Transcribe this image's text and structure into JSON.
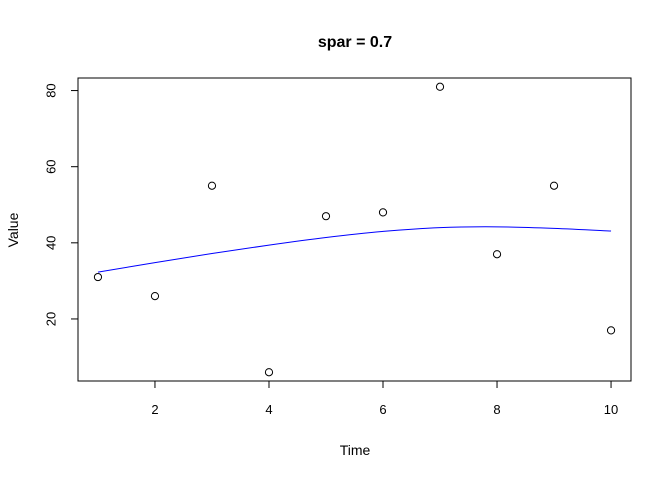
{
  "chart_data": {
    "type": "scatter",
    "title": "spar = 0.7",
    "xlabel": "Time",
    "ylabel": "Value",
    "xlim": [
      0.65,
      10.35
    ],
    "ylim": [
      3.7,
      83.3
    ],
    "x_ticks": [
      2,
      4,
      6,
      8,
      10
    ],
    "y_ticks": [
      20,
      40,
      60,
      80
    ],
    "grid": false,
    "colors": {
      "points": "#000000",
      "smooth_line": "#0000ff",
      "axes": "#000000"
    },
    "series": [
      {
        "type": "scatter",
        "x": [
          1,
          2,
          3,
          4,
          5,
          6,
          7,
          8,
          9,
          10
        ],
        "y": [
          31,
          26,
          55,
          6,
          47,
          48,
          81,
          37,
          55,
          17
        ]
      },
      {
        "type": "line",
        "x": [
          1,
          2,
          3,
          4,
          5,
          6,
          7,
          8,
          9,
          10
        ],
        "y": [
          32.3,
          34.8,
          37.2,
          39.4,
          41.4,
          43.0,
          44.0,
          44.2,
          43.8,
          43.1
        ]
      }
    ]
  }
}
